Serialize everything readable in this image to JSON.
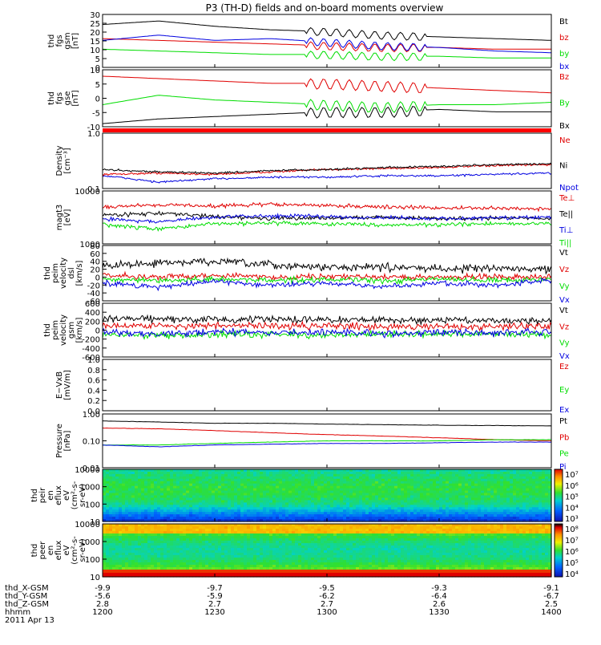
{
  "title": "P3 (TH-D) fields and on-board moments overview",
  "colors": {
    "black": "#000000",
    "red": "#e00000",
    "blue": "#0000e0",
    "green": "#00dd00"
  },
  "panels": [
    {
      "id": "fgs-gsm",
      "ylabel": [
        "thd",
        "fgs",
        "gsm",
        "[nT]"
      ],
      "ticks": [
        "30",
        "25",
        "20",
        "15",
        "10",
        "5",
        "0"
      ],
      "legend": [
        {
          "label": "Bt",
          "color": "black"
        },
        {
          "label": "bz",
          "color": "red"
        },
        {
          "label": "by",
          "color": "green"
        },
        {
          "label": "bx",
          "color": "blue"
        }
      ]
    },
    {
      "id": "fgs-gse",
      "ylabel": [
        "thd",
        "fgs",
        "gse",
        "[nT]"
      ],
      "ticks": [
        "10",
        "5",
        "0",
        "-5",
        "-10"
      ],
      "legend": [
        {
          "label": "Bz",
          "color": "red"
        },
        {
          "label": "By",
          "color": "green"
        },
        {
          "label": "Bx",
          "color": "black"
        }
      ]
    },
    {
      "id": "density",
      "ylabel": [
        "Density",
        "[cm⁻³]"
      ],
      "ticks": [
        "1.0",
        "0.1"
      ],
      "legend": [
        {
          "label": "Ne",
          "color": "red"
        },
        {
          "label": "Ni",
          "color": "black"
        },
        {
          "label": "Npot",
          "color": "blue"
        }
      ]
    },
    {
      "id": "temperature",
      "ylabel": [
        "magt3",
        "[eV]"
      ],
      "ticks": [
        "10000",
        "1000"
      ],
      "legend": [
        {
          "label": "Te⊥",
          "color": "red"
        },
        {
          "label": "Te||",
          "color": "black"
        },
        {
          "label": "Ti⊥",
          "color": "blue"
        },
        {
          "label": "Ti||",
          "color": "green"
        }
      ]
    },
    {
      "id": "peim-velocity-dsl",
      "ylabel": [
        "thd",
        "peim",
        "velocity",
        "dsl",
        "[km/s]"
      ],
      "ticks": [
        "80",
        "60",
        "40",
        "20",
        "0",
        "-20",
        "-40",
        "-60"
      ],
      "legend": [
        {
          "label": "Vt",
          "color": "black"
        },
        {
          "label": "Vz",
          "color": "red"
        },
        {
          "label": "Vy",
          "color": "green"
        },
        {
          "label": "Vx",
          "color": "blue"
        }
      ]
    },
    {
      "id": "peim-velocity-gsm",
      "ylabel": [
        "thd",
        "peim",
        "velocity",
        "gsm",
        "[km/s]"
      ],
      "ticks": [
        "600",
        "400",
        "200",
        "0",
        "-200",
        "-400",
        "-600"
      ],
      "legend": [
        {
          "label": "Vt",
          "color": "black"
        },
        {
          "label": "Vz",
          "color": "red"
        },
        {
          "label": "Vy",
          "color": "green"
        },
        {
          "label": "Vx",
          "color": "blue"
        }
      ]
    },
    {
      "id": "e-vxb",
      "ylabel": [
        "E−VxB",
        "[mV/m]"
      ],
      "ticks": [
        "1.0",
        "0.8",
        "0.6",
        "0.4",
        "0.2",
        "0.0"
      ],
      "legend": [
        {
          "label": "Ez",
          "color": "red"
        },
        {
          "label": "Ey",
          "color": "green"
        },
        {
          "label": "Ex",
          "color": "blue"
        }
      ]
    },
    {
      "id": "pressure",
      "ylabel": [
        "Pressure",
        "[nPa]"
      ],
      "ticks": [
        "1.00",
        "0.10",
        "0.01"
      ],
      "legend": [
        {
          "label": "Pt",
          "color": "black"
        },
        {
          "label": "Pb",
          "color": "red"
        },
        {
          "label": "Pe",
          "color": "green"
        },
        {
          "label": "Pi",
          "color": "blue"
        }
      ]
    },
    {
      "id": "peir-en-eflux",
      "ylabel": [
        "thd",
        "peir",
        "en",
        "eflux",
        "eV",
        "(cm²-s-",
        "sr-eV)"
      ],
      "ticks": [
        "10000",
        "1000",
        "100",
        "10"
      ],
      "colorbar": [
        "10⁷",
        "10⁶",
        "10⁵",
        "10⁴",
        "10³"
      ]
    },
    {
      "id": "peer-en-eflux",
      "ylabel": [
        "thd",
        "peer",
        "en",
        "eflux",
        "eV",
        "(cm²-s-",
        "sr-eV)"
      ],
      "ticks": [
        "10000",
        "1000",
        "100",
        "10"
      ],
      "colorbar": [
        "10⁸",
        "10⁷",
        "10⁶",
        "10⁵",
        "10⁴"
      ]
    }
  ],
  "xaxis": {
    "rows": [
      {
        "label": "thd_X-GSM",
        "values": [
          "-9.9",
          "-9.7",
          "-9.5",
          "-9.3",
          "-9.1"
        ]
      },
      {
        "label": "thd_Y-GSM",
        "values": [
          "-5.6",
          "-5.9",
          "-6.2",
          "-6.4",
          "-6.7"
        ]
      },
      {
        "label": "thd_Z-GSM",
        "values": [
          "2.8",
          "2.7",
          "2.7",
          "2.6",
          "2.5"
        ]
      },
      {
        "label": "hhmm",
        "values": [
          "1200",
          "1230",
          "1300",
          "1330",
          "1400"
        ]
      }
    ],
    "date": "2011 Apr 13"
  },
  "chart_data": {
    "type": "line",
    "title": "P3 (TH-D) fields and on-board moments overview",
    "x": [
      "1200",
      "1230",
      "1300",
      "1330",
      "1400"
    ],
    "xlim": [
      "1200",
      "1400"
    ],
    "series_by_panel": [
      {
        "panel": "fgs-gsm",
        "ylim": [
          0,
          30
        ],
        "series": [
          {
            "name": "Bt",
            "values": [
              24,
              26,
              23,
              21,
              20,
              18,
              17,
              16,
              15
            ]
          },
          {
            "name": "bz",
            "values": [
              16,
              15,
              14,
              13,
              12,
              11,
              11,
              10,
              10
            ]
          },
          {
            "name": "by",
            "values": [
              10,
              9,
              8,
              7,
              7,
              6,
              6,
              5,
              5
            ]
          },
          {
            "name": "bx",
            "values": [
              15,
              18,
              15,
              16,
              14,
              12,
              11,
              9,
              8
            ]
          }
        ]
      },
      {
        "panel": "fgs-gse",
        "ylim": [
          -12,
          12
        ],
        "series": [
          {
            "name": "Bz",
            "values": [
              9,
              8,
              7,
              6,
              6,
              5,
              4,
              3,
              2
            ]
          },
          {
            "name": "By",
            "values": [
              -3,
              1,
              -1,
              -2,
              -3,
              -4,
              -3,
              -3,
              -2
            ]
          },
          {
            "name": "Bx",
            "values": [
              -11,
              -9,
              -8,
              -7,
              -6,
              -6,
              -5,
              -6,
              -6
            ]
          }
        ]
      },
      {
        "panel": "density",
        "ylim": [
          0.1,
          1.0
        ],
        "series": [
          {
            "name": "Ne",
            "values": [
              0.18,
              0.19,
              0.18,
              0.2,
              0.22,
              0.23,
              0.24,
              0.26,
              0.27
            ]
          },
          {
            "name": "Ni",
            "values": [
              0.22,
              0.2,
              0.19,
              0.21,
              0.22,
              0.24,
              0.25,
              0.27,
              0.28
            ]
          },
          {
            "name": "Npot",
            "values": [
              0.17,
              0.13,
              0.15,
              0.16,
              0.16,
              0.17,
              0.17,
              0.18,
              0.19
            ]
          }
        ]
      },
      {
        "panel": "temperature",
        "ylim": [
          1000,
          10000
        ],
        "series": [
          {
            "name": "Te⊥",
            "values": [
              5000,
              5500,
              5200,
              5600,
              5300,
              5000,
              4800,
              4700,
              4600
            ]
          },
          {
            "name": "Te||",
            "values": [
              3500,
              3800,
              3300,
              3000,
              3100,
              3200,
              3000,
              3100,
              3000
            ]
          },
          {
            "name": "Ti⊥",
            "values": [
              3000,
              2600,
              3200,
              3400,
              3300,
              3100,
              3000,
              3100,
              3200
            ]
          },
          {
            "name": "Ti||",
            "values": [
              2300,
              1900,
              2400,
              2500,
              2400,
              2300,
              2300,
              2400,
              2400
            ]
          }
        ]
      },
      {
        "panel": "peim-velocity-dsl",
        "ylim": [
          -60,
          80
        ],
        "series": [
          {
            "name": "Vt",
            "values": [
              30,
              35,
              40,
              30,
              25,
              25,
              22,
              22,
              20
            ]
          },
          {
            "name": "Vz",
            "values": [
              5,
              0,
              5,
              0,
              2,
              0,
              0,
              2,
              0
            ]
          },
          {
            "name": "Vy",
            "values": [
              -5,
              -10,
              -5,
              -8,
              -5,
              -10,
              -5,
              -8,
              -5
            ]
          },
          {
            "name": "Vx",
            "values": [
              -15,
              -25,
              -10,
              -20,
              -15,
              -25,
              -15,
              -20,
              -10
            ]
          }
        ]
      },
      {
        "panel": "peim-velocity-gsm",
        "ylim": [
          -600,
          600
        ],
        "series": [
          {
            "name": "Vt",
            "values": [
              250,
              250,
              230,
              240,
              230,
              230,
              220,
              220,
              210
            ]
          },
          {
            "name": "Vz",
            "values": [
              100,
              100,
              90,
              100,
              90,
              90,
              80,
              80,
              80
            ]
          },
          {
            "name": "Vy",
            "values": [
              -100,
              -120,
              -90,
              -100,
              -110,
              -90,
              -100,
              -90,
              -90
            ]
          },
          {
            "name": "Vx",
            "values": [
              -50,
              -80,
              -40,
              -60,
              -50,
              -70,
              -50,
              -60,
              -40
            ]
          }
        ]
      },
      {
        "panel": "e-vxb",
        "ylim": [
          0.0,
          1.0
        ],
        "series": []
      },
      {
        "panel": "pressure",
        "ylim": [
          0.01,
          1.0
        ],
        "series": [
          {
            "name": "Pt",
            "values": [
              0.55,
              0.5,
              0.45,
              0.45,
              0.42,
              0.4,
              0.38,
              0.37,
              0.36
            ]
          },
          {
            "name": "Pb",
            "values": [
              0.3,
              0.28,
              0.24,
              0.2,
              0.17,
              0.15,
              0.13,
              0.11,
              0.1
            ]
          },
          {
            "name": "Pe",
            "values": [
              0.07,
              0.07,
              0.08,
              0.09,
              0.1,
              0.1,
              0.1,
              0.11,
              0.11
            ]
          },
          {
            "name": "Pi",
            "values": [
              0.07,
              0.06,
              0.07,
              0.075,
              0.08,
              0.08,
              0.085,
              0.09,
              0.09
            ]
          }
        ]
      }
    ],
    "spectrograms": [
      {
        "panel": "peir-en-eflux",
        "ylim": [
          5,
          20000
        ],
        "zlim_exp": [
          3,
          7
        ]
      },
      {
        "panel": "peer-en-eflux",
        "ylim": [
          5,
          20000
        ],
        "zlim_exp": [
          4,
          8
        ]
      }
    ]
  }
}
